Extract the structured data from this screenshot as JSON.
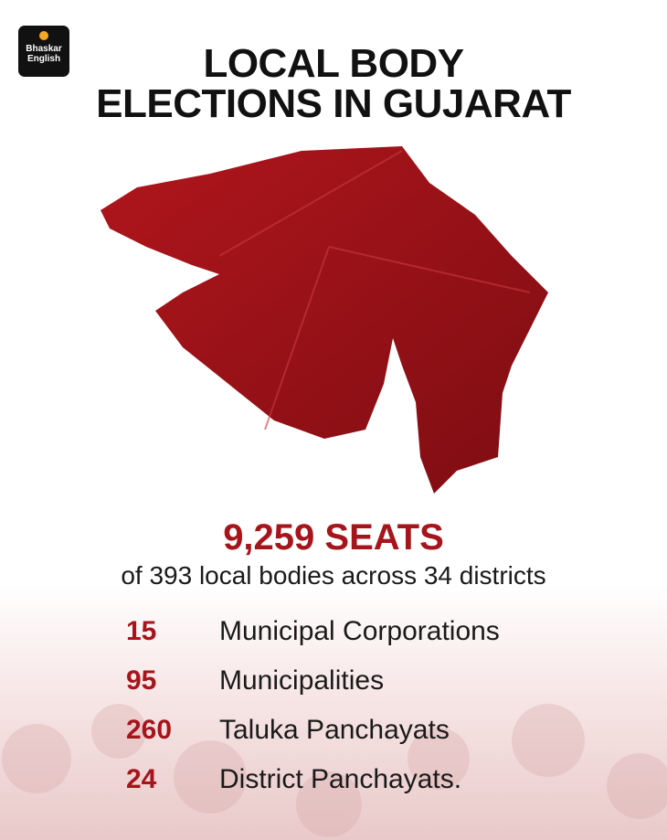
{
  "logo": {
    "line1": "Bhaskar",
    "line2": "English"
  },
  "title": {
    "line1": "LOCAL BODY",
    "line2": "ELECTIONS IN GUJARAT"
  },
  "headline": "9,259 SEATS",
  "subtitle": "of 393 local bodies across 34 districts",
  "items": [
    {
      "count": 15,
      "label": "Municipal Corporations"
    },
    {
      "count": 95,
      "label": "Municipalities"
    },
    {
      "count": 260,
      "label": "Taluka Panchayats"
    },
    {
      "count": 24,
      "label": "District Panchayats."
    }
  ]
}
